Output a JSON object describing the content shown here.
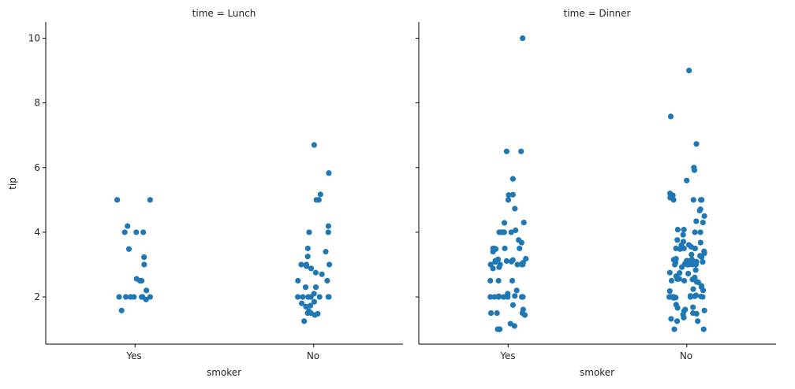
{
  "chart_data": [
    {
      "type": "scatter",
      "subtype": "strip",
      "title": "time = Lunch",
      "xlabel": "smoker",
      "ylabel": "tip",
      "categories": [
        "Yes",
        "No"
      ],
      "ylim": [
        0.54,
        10.5
      ],
      "yticks": [
        2,
        4,
        6,
        8,
        10
      ],
      "grid": false,
      "color": "#1f77b4",
      "series": [
        {
          "category": "Yes",
          "values": [
            5.0,
            5.0,
            4.19,
            4.0,
            4.0,
            4.0,
            3.48,
            3.23,
            3.0,
            2.56,
            2.5,
            2.5,
            2.2,
            2.0,
            2.0,
            2.0,
            2.0,
            2.0,
            2.0,
            2.0,
            2.0,
            1.92,
            1.58
          ]
        },
        {
          "category": "No",
          "values": [
            6.7,
            5.83,
            5.17,
            5.0,
            5.0,
            4.19,
            4.0,
            4.0,
            3.5,
            3.4,
            3.25,
            3.0,
            2.95,
            2.88,
            3.0,
            3.0,
            2.75,
            2.7,
            2.5,
            2.5,
            2.3,
            2.3,
            2.1,
            2.0,
            2.0,
            2.0,
            2.0,
            2.0,
            2.0,
            2.0,
            2.0,
            1.85,
            1.8,
            1.73,
            1.7,
            1.56,
            1.5,
            1.5,
            1.44,
            1.48,
            1.25
          ]
        }
      ]
    },
    {
      "type": "scatter",
      "subtype": "strip",
      "title": "time = Dinner",
      "xlabel": "smoker",
      "ylabel": "",
      "categories": [
        "Yes",
        "No"
      ],
      "ylim": [
        0.54,
        10.5
      ],
      "yticks": [
        2,
        4,
        6,
        8,
        10
      ],
      "grid": false,
      "color": "#1f77b4",
      "series": [
        {
          "category": "Yes",
          "values": [
            10.0,
            6.5,
            6.5,
            5.65,
            5.16,
            5.15,
            5.0,
            4.73,
            4.3,
            4.29,
            4.06,
            4.0,
            4.0,
            4.0,
            4.0,
            4.0,
            3.76,
            3.68,
            3.5,
            3.5,
            3.5,
            3.5,
            3.48,
            3.4,
            3.18,
            3.16,
            3.14,
            3.12,
            3.11,
            3.09,
            3.08,
            3.06,
            3.02,
            3.0,
            3.0,
            3.0,
            3.0,
            3.0,
            3.0,
            2.92,
            2.88,
            2.5,
            2.5,
            2.5,
            2.2,
            2.1,
            2.03,
            2.02,
            2.0,
            2.0,
            2.0,
            2.0,
            2.0,
            2.0,
            2.0,
            2.0,
            1.75,
            1.61,
            1.5,
            1.5,
            1.5,
            1.44,
            1.17,
            1.1,
            1.0,
            1.0,
            1.0
          ]
        },
        {
          "category": "No",
          "values": [
            9.0,
            7.58,
            6.73,
            6.0,
            5.92,
            5.6,
            5.2,
            5.14,
            5.0,
            5.0,
            5.0,
            5.0,
            5.07,
            4.71,
            4.67,
            4.5,
            4.3,
            4.34,
            4.08,
            4.08,
            4.0,
            4.0,
            3.92,
            3.76,
            3.71,
            3.68,
            3.61,
            3.6,
            3.55,
            3.5,
            3.5,
            3.5,
            3.5,
            3.5,
            3.48,
            3.41,
            3.35,
            3.31,
            3.27,
            3.23,
            3.18,
            3.16,
            3.15,
            3.12,
            3.11,
            3.09,
            3.08,
            3.07,
            3.06,
            3.02,
            3.0,
            3.0,
            3.0,
            3.0,
            3.0,
            3.0,
            2.92,
            2.83,
            2.75,
            2.74,
            2.72,
            2.64,
            2.6,
            2.56,
            2.55,
            2.54,
            2.5,
            2.5,
            2.47,
            2.45,
            2.34,
            2.31,
            2.24,
            2.2,
            2.18,
            2.05,
            2.03,
            2.02,
            2.01,
            2.0,
            2.0,
            2.0,
            2.0,
            2.0,
            2.0,
            2.0,
            2.0,
            1.98,
            1.97,
            1.76,
            1.68,
            1.66,
            1.61,
            1.58,
            1.56,
            1.5,
            1.48,
            1.45,
            1.36,
            1.32,
            1.25,
            1.25,
            1.0,
            1.0
          ]
        }
      ]
    }
  ]
}
